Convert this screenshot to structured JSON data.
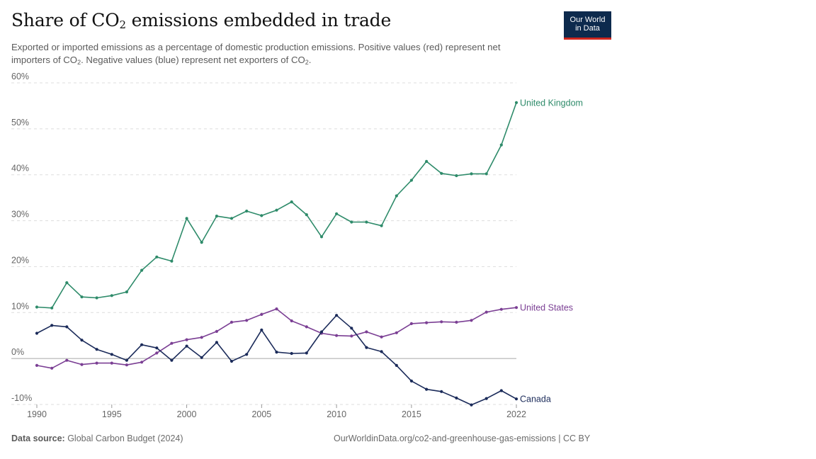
{
  "header": {
    "title_main": "Share of CO",
    "title_sub": "2",
    "title_tail": " emissions embedded in trade",
    "subtitle_p1": "Exported or imported emissions as a percentage of domestic production emissions. Positive values (red) represent net importers of CO",
    "subtitle_sub1": "2",
    "subtitle_p2": ". Negative values (blue) represent net exporters of CO",
    "subtitle_sub2": "2",
    "subtitle_p3": "."
  },
  "logo": {
    "line1": "Our World",
    "line2": "in Data",
    "bg_color": "#0d2a4d",
    "accent_color": "#ce261e"
  },
  "footer": {
    "source_label": "Data source:",
    "source_text": " Global Carbon Budget (2024)",
    "right_text": "OurWorldinData.org/co2-and-greenhouse-gas-emissions | CC BY"
  },
  "chart_data": {
    "type": "line",
    "x_ticks": [
      "1990",
      "1995",
      "2000",
      "2005",
      "2010",
      "2015",
      "2022"
    ],
    "y_ticks": [
      "-10%",
      "0%",
      "10%",
      "20%",
      "30%",
      "40%",
      "50%",
      "60%"
    ],
    "ylim": [
      -10,
      60
    ],
    "xlim": [
      1990,
      2022
    ],
    "grid": true,
    "series": [
      {
        "name": "United Kingdom",
        "color": "#2e8b6a",
        "x": [
          1990,
          1991,
          1992,
          1993,
          1994,
          1995,
          1996,
          1997,
          1998,
          1999,
          2000,
          2001,
          2002,
          2003,
          2004,
          2005,
          2006,
          2007,
          2008,
          2009,
          2010,
          2011,
          2012,
          2013,
          2014,
          2015,
          2016,
          2017,
          2018,
          2019,
          2020,
          2021,
          2022
        ],
        "values": [
          11.2,
          11.0,
          16.5,
          13.4,
          13.2,
          13.7,
          14.5,
          19.2,
          22.1,
          21.2,
          30.5,
          25.3,
          31.0,
          30.5,
          32.1,
          31.1,
          32.3,
          34.1,
          31.3,
          26.5,
          31.5,
          29.7,
          29.7,
          28.9,
          35.4,
          38.8,
          42.9,
          40.3,
          39.8,
          40.2,
          40.2,
          46.5,
          55.7
        ]
      },
      {
        "name": "United States",
        "color": "#7b3f94",
        "x": [
          1990,
          1991,
          1992,
          1993,
          1994,
          1995,
          1996,
          1997,
          1998,
          1999,
          2000,
          2001,
          2002,
          2003,
          2004,
          2005,
          2006,
          2007,
          2008,
          2009,
          2010,
          2011,
          2012,
          2013,
          2014,
          2015,
          2016,
          2017,
          2018,
          2019,
          2020,
          2021,
          2022
        ],
        "values": [
          -1.5,
          -2.1,
          -0.4,
          -1.3,
          -1.0,
          -1.0,
          -1.4,
          -0.8,
          1.2,
          3.3,
          4.1,
          4.6,
          5.9,
          7.9,
          8.3,
          9.6,
          10.8,
          8.2,
          6.9,
          5.5,
          5.0,
          4.9,
          5.8,
          4.7,
          5.6,
          7.6,
          7.8,
          8.0,
          7.9,
          8.3,
          10.1,
          10.7,
          11.1
        ]
      },
      {
        "name": "Canada",
        "color": "#1b2b5a",
        "x": [
          1990,
          1991,
          1992,
          1993,
          1994,
          1995,
          1996,
          1997,
          1998,
          1999,
          2000,
          2001,
          2002,
          2003,
          2004,
          2005,
          2006,
          2007,
          2008,
          2009,
          2010,
          2011,
          2012,
          2013,
          2014,
          2015,
          2016,
          2017,
          2018,
          2019,
          2020,
          2021,
          2022
        ],
        "values": [
          5.5,
          7.2,
          6.9,
          4.0,
          2.0,
          0.9,
          -0.4,
          3.0,
          2.3,
          -0.4,
          2.7,
          0.2,
          3.5,
          -0.6,
          0.9,
          6.2,
          1.4,
          1.1,
          1.2,
          5.8,
          9.4,
          6.6,
          2.4,
          1.5,
          -1.5,
          -4.9,
          -6.7,
          -7.2,
          -8.6,
          -10.1,
          -8.7,
          -7.0,
          -8.8
        ]
      }
    ]
  }
}
